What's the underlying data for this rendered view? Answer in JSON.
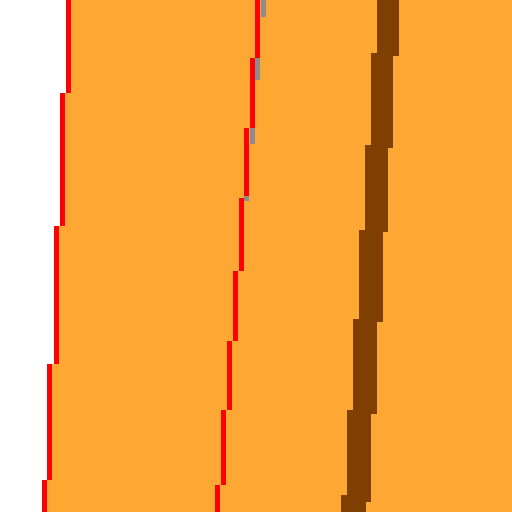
{
  "colors": {
    "background": "#ffffff",
    "fill": "#ffa733",
    "edge_line": "#ff0000",
    "dark_stripe": "#7f3f00",
    "gray_mark": "#8c8c8c"
  }
}
